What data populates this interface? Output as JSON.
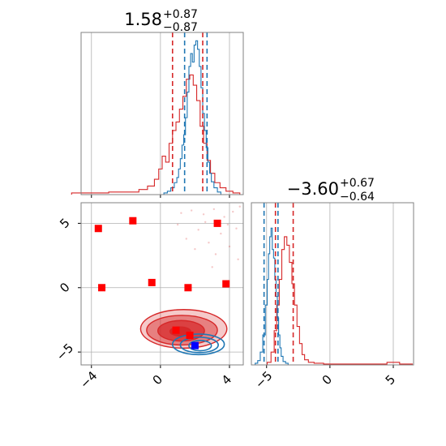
{
  "chart_data": {
    "type": "corner",
    "grid": true,
    "colors": {
      "blue": "#1f77b4",
      "red": "#d62728",
      "marker_red": "#ff0000",
      "marker_blue": "#0000ff",
      "grid": "#b0b0b0"
    },
    "panels": {
      "param1_hist": {
        "type": "histogram",
        "xlim": [
          -4.6,
          4.8
        ],
        "title_value": "1.58",
        "title_plus": "+0.87",
        "title_minus": "−0.87",
        "blue_quantiles": [
          1.4,
          2.7
        ],
        "red_quantiles": [
          0.7,
          2.45
        ],
        "blue_hist": {
          "x": [
            0.3,
            0.5,
            0.7,
            0.9,
            1.0,
            1.1,
            1.2,
            1.3,
            1.4,
            1.5,
            1.6,
            1.7,
            1.8,
            1.9,
            2.0,
            2.1,
            2.2,
            2.3,
            2.4,
            2.5,
            2.6,
            2.7,
            2.8,
            2.9,
            3.0,
            3.2,
            3.4
          ],
          "y": [
            2,
            4,
            8,
            14,
            20,
            30,
            42,
            58,
            70,
            90,
            120,
            150,
            165,
            155,
            175,
            180,
            170,
            150,
            125,
            95,
            75,
            55,
            38,
            25,
            15,
            8,
            3
          ]
        },
        "red_hist": {
          "x": [
            -4.6,
            -3.5,
            -2.5,
            -1.5,
            -1.0,
            -0.5,
            -0.2,
            0.0,
            0.2,
            0.4,
            0.6,
            0.8,
            1.0,
            1.2,
            1.4,
            1.6,
            1.8,
            2.0,
            2.2,
            2.4,
            2.6,
            2.8,
            3.0,
            3.3,
            3.6,
            4.0,
            4.4
          ],
          "y": [
            2,
            2,
            3,
            3,
            6,
            10,
            18,
            30,
            45,
            38,
            60,
            75,
            85,
            100,
            115,
            135,
            140,
            128,
            110,
            80,
            60,
            40,
            25,
            14,
            8,
            4,
            2
          ]
        }
      },
      "param2_hist": {
        "type": "histogram",
        "xlim": [
          -6.2,
          6.6
        ],
        "title_value": "−3.60",
        "title_plus": "+0.67",
        "title_minus": "−0.64",
        "xticks": [
          "−5",
          "0",
          "5"
        ],
        "xtick_values": [
          -5,
          0,
          5
        ],
        "blue_quantiles": [
          -5.2,
          -4.1
        ],
        "red_quantiles": [
          -4.3,
          -2.9
        ],
        "blue_hist": {
          "x": [
            -5.8,
            -5.6,
            -5.4,
            -5.2,
            -5.0,
            -4.9,
            -4.8,
            -4.7,
            -4.6,
            -4.5,
            -4.4,
            -4.3,
            -4.2,
            -4.1,
            -4.0,
            -3.9,
            -3.8,
            -3.6,
            -3.4
          ],
          "y": [
            2,
            5,
            15,
            35,
            70,
            100,
            130,
            150,
            160,
            135,
            125,
            100,
            80,
            55,
            35,
            20,
            10,
            4,
            2
          ]
        },
        "red_hist": {
          "x": [
            -4.8,
            -4.5,
            -4.3,
            -4.1,
            -3.9,
            -3.7,
            -3.5,
            -3.3,
            -3.1,
            -2.9,
            -2.7,
            -2.5,
            -2.3,
            -2.1,
            -1.9,
            -1.5,
            -1.0,
            0,
            1,
            2,
            3,
            4,
            5,
            6
          ],
          "y": [
            3,
            15,
            40,
            70,
            100,
            135,
            150,
            140,
            120,
            95,
            70,
            45,
            25,
            12,
            6,
            3,
            2,
            1,
            1,
            1,
            1,
            1,
            3,
            1
          ]
        }
      },
      "joint": {
        "type": "scatter",
        "xlim": [
          -4.6,
          4.8
        ],
        "ylim": [
          -6.0,
          6.6
        ],
        "xticks": [
          "−4",
          "0",
          "4"
        ],
        "xtick_values": [
          -4,
          0,
          4
        ],
        "yticks": [
          "−5",
          "0",
          "5"
        ],
        "ytick_values": [
          -5,
          0,
          5
        ],
        "red_markers": [
          {
            "x": -3.6,
            "y": 4.6
          },
          {
            "x": -1.6,
            "y": 5.2
          },
          {
            "x": 3.3,
            "y": 5.0
          },
          {
            "x": -3.4,
            "y": 0.0
          },
          {
            "x": -0.5,
            "y": 0.4
          },
          {
            "x": 1.6,
            "y": 0.0
          },
          {
            "x": 3.8,
            "y": 0.3
          },
          {
            "x": 0.9,
            "y": -3.3
          },
          {
            "x": 1.7,
            "y": -3.7
          }
        ],
        "blue_markers": [
          {
            "x": 2.0,
            "y": -4.5
          }
        ],
        "red_scatter": [
          {
            "x": 1.2,
            "y": 5.8
          },
          {
            "x": 1.8,
            "y": 6.0
          },
          {
            "x": 2.5,
            "y": 5.7
          },
          {
            "x": 3.1,
            "y": 6.1
          },
          {
            "x": 3.7,
            "y": 5.5
          },
          {
            "x": 4.2,
            "y": 5.9
          },
          {
            "x": 2.2,
            "y": 4.5
          },
          {
            "x": 3.5,
            "y": 4.2
          },
          {
            "x": 4.4,
            "y": 4.6
          },
          {
            "x": 1.5,
            "y": 3.8
          },
          {
            "x": 2.8,
            "y": 3.5
          },
          {
            "x": 4.0,
            "y": 3.2
          },
          {
            "x": 3.2,
            "y": 2.6
          },
          {
            "x": 4.5,
            "y": 2.2
          },
          {
            "x": 2.6,
            "y": 5.1
          },
          {
            "x": 3.9,
            "y": 4.9
          },
          {
            "x": 1.0,
            "y": 4.9
          },
          {
            "x": 4.6,
            "y": 6.3
          },
          {
            "x": 2.0,
            "y": 3.0
          },
          {
            "x": 3.0,
            "y": 1.6
          }
        ],
        "red_contours": [
          {
            "cx": 1.35,
            "cy": -3.2,
            "rx": 2.5,
            "ry": 1.5,
            "level": 3
          },
          {
            "cx": 1.25,
            "cy": -3.3,
            "rx": 2.05,
            "ry": 1.15,
            "level": 2
          },
          {
            "cx": 1.2,
            "cy": -3.35,
            "rx": 1.35,
            "ry": 0.8,
            "level": 1
          },
          {
            "cx": 1.15,
            "cy": -3.4,
            "rx": 0.6,
            "ry": 0.35,
            "level": 0
          }
        ],
        "blue_contours": [
          {
            "cx": 2.2,
            "cy": -4.4,
            "rx": 1.5,
            "ry": 0.8
          },
          {
            "cx": 2.25,
            "cy": -4.45,
            "rx": 1.1,
            "ry": 0.6
          },
          {
            "cx": 2.3,
            "cy": -4.5,
            "rx": 0.65,
            "ry": 0.4
          }
        ]
      }
    }
  }
}
